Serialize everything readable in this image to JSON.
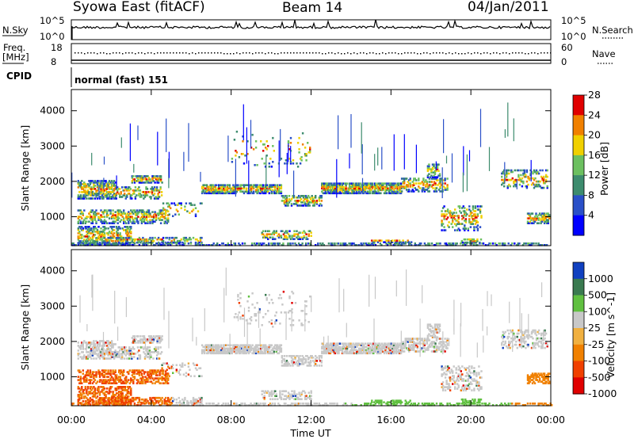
{
  "header": {
    "station": "Syowa East (fitACF)",
    "beam": "Beam 14",
    "date": "04/Jan/2011"
  },
  "noise_panel": {
    "left_label": "N.Sky",
    "right_label": "N.Search",
    "left_ticks": [
      "10^5",
      "10^0"
    ],
    "right_ticks": [
      "10^5",
      "10^0"
    ]
  },
  "freq_panel": {
    "left_label_top": "Freq.",
    "left_label_bottom": "[MHz]",
    "right_label": "Nave",
    "left_ticks": [
      "18",
      "8"
    ],
    "right_ticks": [
      "60",
      "0"
    ]
  },
  "cpid": {
    "label": "CPID",
    "value": "normal (fast) 151"
  },
  "chart_data": [
    {
      "type": "heatmap",
      "name": "power",
      "ylabel": "Slant Range [km]",
      "xlabel": "Time UT",
      "x_ticks": [
        "00:00",
        "04:00",
        "08:00",
        "12:00",
        "16:00",
        "20:00",
        "00:00"
      ],
      "y_ticks": [
        1000,
        2000,
        3000,
        4000
      ],
      "ylim": [
        180,
        4600
      ],
      "xlim_hours": [
        0,
        24
      ],
      "colorbar": {
        "label": "Power [dB]",
        "ticks": [
          "4",
          "8",
          "12",
          "16",
          "20",
          "24",
          "28"
        ],
        "colors": [
          "#0000ff",
          "#2a50c8",
          "#3d8c6e",
          "#6cc060",
          "#f0d000",
          "#f08000",
          "#e00000"
        ]
      }
    },
    {
      "type": "heatmap",
      "name": "velocity",
      "ylabel": "Slant Range [km]",
      "xlabel": "Time UT",
      "x_ticks": [
        "00:00",
        "04:00",
        "08:00",
        "12:00",
        "16:00",
        "20:00",
        "00:00"
      ],
      "y_ticks": [
        1000,
        2000,
        3000,
        4000
      ],
      "ylim": [
        180,
        4600
      ],
      "xlim_hours": [
        0,
        24
      ],
      "colorbar": {
        "label": "Velocity [m s^-1]",
        "ticks": [
          "1000",
          "500",
          "100",
          "25",
          "-25",
          "-100",
          "-500",
          "-1000"
        ],
        "colors": [
          "#1040c0",
          "#3a7a50",
          "#60c040",
          "#c8c8c8",
          "#f0b040",
          "#f08000",
          "#f04000",
          "#e00000"
        ]
      }
    }
  ],
  "x_axis": {
    "ticks": [
      "00:00",
      "04:00",
      "08:00",
      "12:00",
      "16:00",
      "20:00",
      "00:00"
    ],
    "label": "Time UT"
  }
}
